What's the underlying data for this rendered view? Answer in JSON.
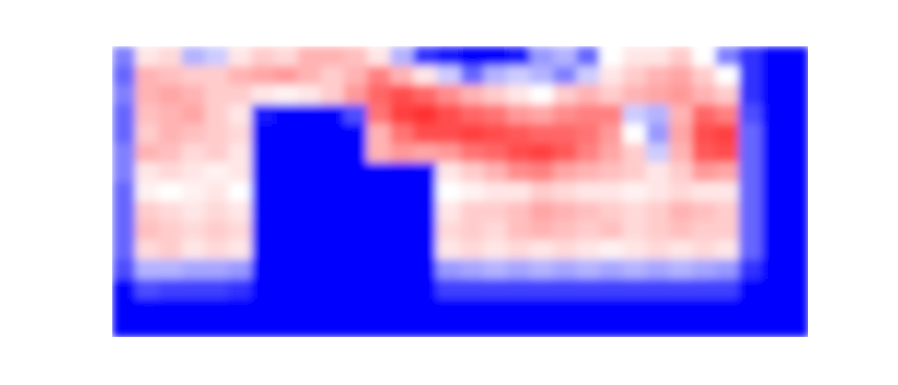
{
  "chart_data": {
    "type": "heatmap",
    "tick_labels": false,
    "zlim": [
      -1,
      1
    ],
    "cells": [
      [
        -0.5,
        0.1,
        0.15,
        -0.3,
        -0.2,
        0.1,
        0.2,
        0.15,
        0.3,
        0.3,
        0.25,
        0.1,
        -0.3,
        -0.8,
        -0.9,
        -1,
        -1,
        -0.9,
        -0.4,
        -0.3,
        -0.6,
        0,
        0.1,
        0.1,
        0.2,
        0,
        -0.5,
        -0.8,
        -1,
        -1
      ],
      [
        -0.6,
        0.3,
        0.25,
        0.2,
        0.2,
        0.3,
        0.35,
        0.4,
        0.3,
        0.2,
        0.3,
        0.5,
        0.3,
        0.1,
        -0.2,
        -0.6,
        -0.3,
        -0.2,
        -0.3,
        -0.5,
        -0.2,
        0.1,
        0.2,
        0.3,
        0.35,
        0.2,
        0,
        -0.8,
        -1,
        -1
      ],
      [
        -0.5,
        0.3,
        0.35,
        0.3,
        0.2,
        0.2,
        0.1,
        0.05,
        0.1,
        0.2,
        0.4,
        0.6,
        0.7,
        0.6,
        0.45,
        0.3,
        0.2,
        0.1,
        0,
        0.2,
        0.3,
        0.2,
        0.3,
        0.35,
        0.4,
        0.3,
        0.2,
        -0.8,
        -1,
        -1
      ],
      [
        -0.6,
        0.25,
        0.3,
        0.35,
        0.2,
        0.1,
        -0.9,
        -1,
        -1,
        -1,
        -0.7,
        0.55,
        0.75,
        0.8,
        0.7,
        0.6,
        0.55,
        0.4,
        0.35,
        0.45,
        0.5,
        0.5,
        -0.2,
        -0.3,
        0.3,
        0.6,
        0.5,
        -0.7,
        -1,
        -1
      ],
      [
        -0.6,
        0.2,
        0.3,
        0.25,
        0.2,
        0.15,
        -1,
        -1,
        -1,
        -1,
        -1,
        0.3,
        0.55,
        0.7,
        0.7,
        0.75,
        0.7,
        0.65,
        0.6,
        0.6,
        0.55,
        0.4,
        0,
        -0.4,
        0.35,
        0.7,
        0.75,
        -0.6,
        -1,
        -1
      ],
      [
        -0.5,
        0.3,
        0.25,
        0.15,
        0.2,
        0.1,
        -1,
        -1,
        -1,
        -1,
        -1,
        0.3,
        0.4,
        0.35,
        0.4,
        0.55,
        0.6,
        0.7,
        0.75,
        0.65,
        0.5,
        0.35,
        0.2,
        -0.2,
        0.3,
        0.65,
        0.7,
        -0.6,
        -1,
        -1
      ],
      [
        -0.5,
        0.1,
        0.15,
        0.1,
        0.05,
        0.1,
        -1,
        -1,
        -1,
        -1,
        -1,
        -1,
        -1,
        -1,
        0.1,
        0.2,
        0.3,
        0.45,
        0.5,
        0.35,
        0.3,
        0.25,
        0.2,
        0.1,
        0.2,
        0.4,
        0.35,
        -0.6,
        -1,
        -1
      ],
      [
        -0.6,
        0.05,
        0,
        0.05,
        0.1,
        0,
        -1,
        -1,
        -1,
        -1,
        -1,
        -1,
        -1,
        -1,
        0,
        0.05,
        0.1,
        0.1,
        0.2,
        0.15,
        0.1,
        0.1,
        0.05,
        0.1,
        0.15,
        0.1,
        0.1,
        -0.6,
        -1,
        -1
      ],
      [
        -0.6,
        0.2,
        0.15,
        0.1,
        0.15,
        0.1,
        -1,
        -1,
        -1,
        -1,
        -1,
        -1,
        -1,
        -1,
        0.1,
        0.2,
        0.2,
        0.25,
        0.35,
        0.3,
        0.25,
        0.2,
        0.15,
        0.2,
        0.3,
        0.25,
        0.2,
        -0.6,
        -1,
        -1
      ],
      [
        -0.6,
        0.25,
        0.2,
        0.15,
        0.2,
        0.15,
        -1,
        -1,
        -1,
        -1,
        -1,
        -1,
        -1,
        -1,
        0.15,
        0.2,
        0.15,
        0.25,
        0.3,
        0.25,
        0.2,
        0.25,
        0.15,
        0.2,
        0.25,
        0.2,
        0.2,
        -0.6,
        -1,
        -1
      ],
      [
        -0.6,
        0.15,
        0.2,
        0.1,
        0.15,
        0.1,
        -1,
        -1,
        -1,
        -1,
        -1,
        -1,
        -1,
        -1,
        0.1,
        0.15,
        0.1,
        0.15,
        0.1,
        0.15,
        0.1,
        0.05,
        0.1,
        0.15,
        0.1,
        0.15,
        0.1,
        -0.6,
        -1,
        -1
      ],
      [
        -0.7,
        -0.3,
        -0.3,
        -0.35,
        -0.35,
        -0.4,
        -1,
        -1,
        -1,
        -1,
        -1,
        -1,
        -1,
        -1,
        -0.4,
        -0.35,
        -0.3,
        -0.35,
        -0.3,
        -0.35,
        -0.3,
        -0.35,
        -0.3,
        -0.35,
        -0.3,
        -0.35,
        -0.4,
        -0.8,
        -1,
        -1
      ],
      [
        -1,
        -0.7,
        -0.75,
        -0.75,
        -0.75,
        -0.8,
        -1,
        -1,
        -1,
        -1,
        -1,
        -1,
        -1,
        -1,
        -0.75,
        -0.75,
        -0.75,
        -0.75,
        -0.75,
        -0.75,
        -0.75,
        -0.75,
        -0.75,
        -0.75,
        -0.75,
        -0.75,
        -0.75,
        -1,
        -1,
        -1
      ],
      [
        -1,
        -1,
        -1,
        -1,
        -1,
        -1,
        -1,
        -1,
        -1,
        -1,
        -1,
        -1,
        -1,
        -1,
        -1,
        -1,
        -1,
        -1,
        -1,
        -1,
        -1,
        -1,
        -1,
        -1,
        -1,
        -1,
        -1,
        -1,
        -1,
        -1
      ],
      [
        -1,
        -1,
        -1,
        -1,
        -1,
        -1,
        -1,
        -1,
        -1,
        -1,
        -1,
        -1,
        -1,
        -1,
        -1,
        -1,
        -1,
        -1,
        -1,
        -1,
        -1,
        -1,
        -1,
        -1,
        -1,
        -1,
        -1,
        -1,
        -1,
        -1
      ]
    ]
  }
}
